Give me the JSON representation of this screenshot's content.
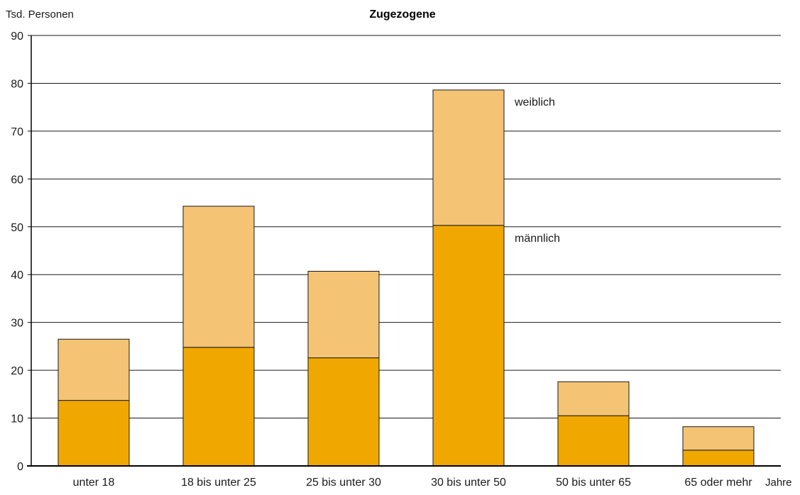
{
  "chart_data": {
    "type": "bar",
    "stacked": true,
    "title": "Zugezogene",
    "ylabel": "Tsd. Personen",
    "xlabel": "Jahre",
    "ylim": [
      0,
      90
    ],
    "yticks": [
      0,
      10,
      20,
      30,
      40,
      50,
      60,
      70,
      80,
      90
    ],
    "grid": true,
    "categories": [
      "unter 18",
      "18 bis unter 25",
      "25 bis unter 30",
      "30 bis unter 50",
      "50 bis unter 65",
      "65 oder mehr"
    ],
    "series": [
      {
        "name": "männlich",
        "color": "#F0A800",
        "values": [
          13.7,
          24.8,
          22.6,
          50.3,
          10.5,
          3.3
        ]
      },
      {
        "name": "weiblich",
        "color": "#F4C474",
        "values": [
          12.8,
          29.5,
          18.1,
          28.3,
          7.1,
          4.9
        ]
      }
    ]
  }
}
